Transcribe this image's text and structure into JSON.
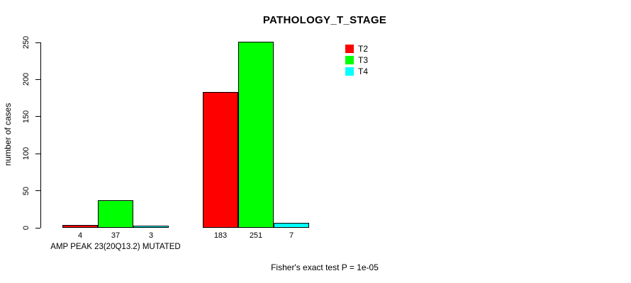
{
  "chart_data": {
    "type": "bar",
    "title": "PATHOLOGY_T_STAGE",
    "ylabel": "number of cases",
    "xlabel": "",
    "ylim": [
      0,
      250
    ],
    "yticks": [
      0,
      50,
      100,
      150,
      200,
      250
    ],
    "grid": false,
    "legend_position": "top-right",
    "categories": [
      "AMP PEAK 23(20Q13.2) MUTATED",
      ""
    ],
    "series": [
      {
        "name": "T2",
        "color": "#ff0000",
        "values": [
          4,
          183
        ]
      },
      {
        "name": "T3",
        "color": "#00ff00",
        "values": [
          37,
          251
        ]
      },
      {
        "name": "T4",
        "color": "#00ffff",
        "values": [
          3,
          7
        ]
      }
    ],
    "bar_value_labels": [
      [
        "4",
        "37",
        "3"
      ],
      [
        "183",
        "251",
        "7"
      ]
    ],
    "annotation": "Fisher's exact test P = 1e-05"
  }
}
